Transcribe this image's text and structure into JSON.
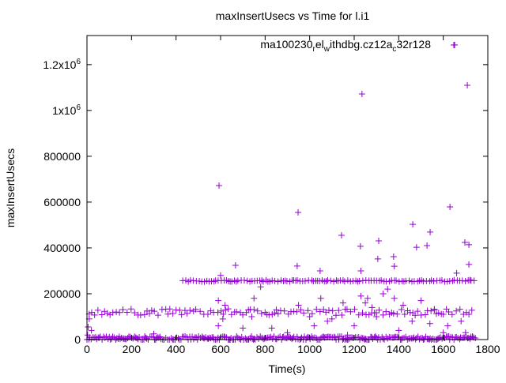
{
  "chart_data": {
    "type": "scatter",
    "title": "maxInsertUsecs vs Time for l.i1",
    "xlabel": "Time(s)",
    "ylabel": "maxInsertUsecs",
    "xlim": [
      0,
      1800
    ],
    "ylim": [
      0,
      1327000
    ],
    "x_ticks": [
      "0",
      "200",
      "400",
      "600",
      "800",
      "1000",
      "1200",
      "1400",
      "1600",
      "1800"
    ],
    "x_tick_values": [
      0,
      200,
      400,
      600,
      800,
      1000,
      1200,
      1400,
      1600,
      1800
    ],
    "y_ticks": [
      {
        "value": 0,
        "label": "0"
      },
      {
        "value": 200000,
        "label": "200000"
      },
      {
        "value": 400000,
        "label": "400000"
      },
      {
        "value": 600000,
        "label": "600000"
      },
      {
        "value": 800000,
        "label": "800000"
      },
      {
        "value": 1000000,
        "label": "1x10",
        "sup": "6"
      },
      {
        "value": 1200000,
        "label": "1.2x10",
        "sup": "6"
      }
    ],
    "grid": false,
    "legend_position": "top-right",
    "series": [
      {
        "name": "ma100230_rel_withdbg.cz12a_c32r128",
        "color": "#9400d3",
        "marker": "plus",
        "bands": [
          {
            "y": 5000,
            "x_start": 0,
            "x_end": 1745,
            "step": 6,
            "spread": 9000
          },
          {
            "y": 120000,
            "x_start": 10,
            "x_end": 1740,
            "step": 14,
            "spread": 14000
          },
          {
            "y": 256000,
            "x_start": 430,
            "x_end": 1740,
            "step": 11,
            "spread": 3000
          }
        ],
        "points": [
          [
            1651,
            1286000
          ],
          [
            1708,
            1110000
          ],
          [
            1235,
            1072000
          ],
          [
            593,
            672000
          ],
          [
            948,
            555000
          ],
          [
            1630,
            579000
          ],
          [
            1143,
            455000
          ],
          [
            1463,
            503000
          ],
          [
            1541,
            469000
          ],
          [
            1310,
            431000
          ],
          [
            1228,
            407000
          ],
          [
            1480,
            403000
          ],
          [
            1527,
            410000
          ],
          [
            1697,
            424000
          ],
          [
            1715,
            414000
          ],
          [
            667,
            324000
          ],
          [
            944,
            321000
          ],
          [
            1715,
            328000
          ],
          [
            1306,
            352000
          ],
          [
            1377,
            362000
          ],
          [
            1047,
            300000
          ],
          [
            1230,
            300000
          ],
          [
            1380,
            320000
          ],
          [
            1660,
            290000
          ],
          [
            600,
            280000
          ],
          [
            10,
            90000
          ],
          [
            5,
            55000
          ],
          [
            20,
            40000
          ],
          [
            3,
            20000
          ],
          [
            590,
            170000
          ],
          [
            620,
            150000
          ],
          [
            590,
            60000
          ],
          [
            700,
            50000
          ],
          [
            750,
            180000
          ],
          [
            780,
            230000
          ],
          [
            830,
            50000
          ],
          [
            850,
            130000
          ],
          [
            950,
            150000
          ],
          [
            1000,
            100000
          ],
          [
            1050,
            180000
          ],
          [
            1100,
            90000
          ],
          [
            1150,
            160000
          ],
          [
            1200,
            60000
          ],
          [
            1230,
            190000
          ],
          [
            1250,
            160000
          ],
          [
            1280,
            140000
          ],
          [
            1300,
            100000
          ],
          [
            1330,
            200000
          ],
          [
            1380,
            180000
          ],
          [
            1400,
            40000
          ],
          [
            1420,
            150000
          ],
          [
            1460,
            80000
          ],
          [
            1500,
            170000
          ],
          [
            1540,
            70000
          ],
          [
            1560,
            130000
          ],
          [
            1620,
            60000
          ],
          [
            1680,
            80000
          ],
          [
            1700,
            30000
          ],
          [
            1720,
            260000
          ],
          [
            1600,
            30000
          ],
          [
            1350,
            220000
          ],
          [
            1170,
            20000
          ],
          [
            1260,
            180000
          ],
          [
            1080,
            80000
          ],
          [
            740,
            100000
          ],
          [
            610,
            90000
          ],
          [
            300,
            25000
          ],
          [
            1020,
            60000
          ],
          [
            900,
            30000
          ]
        ]
      }
    ]
  }
}
